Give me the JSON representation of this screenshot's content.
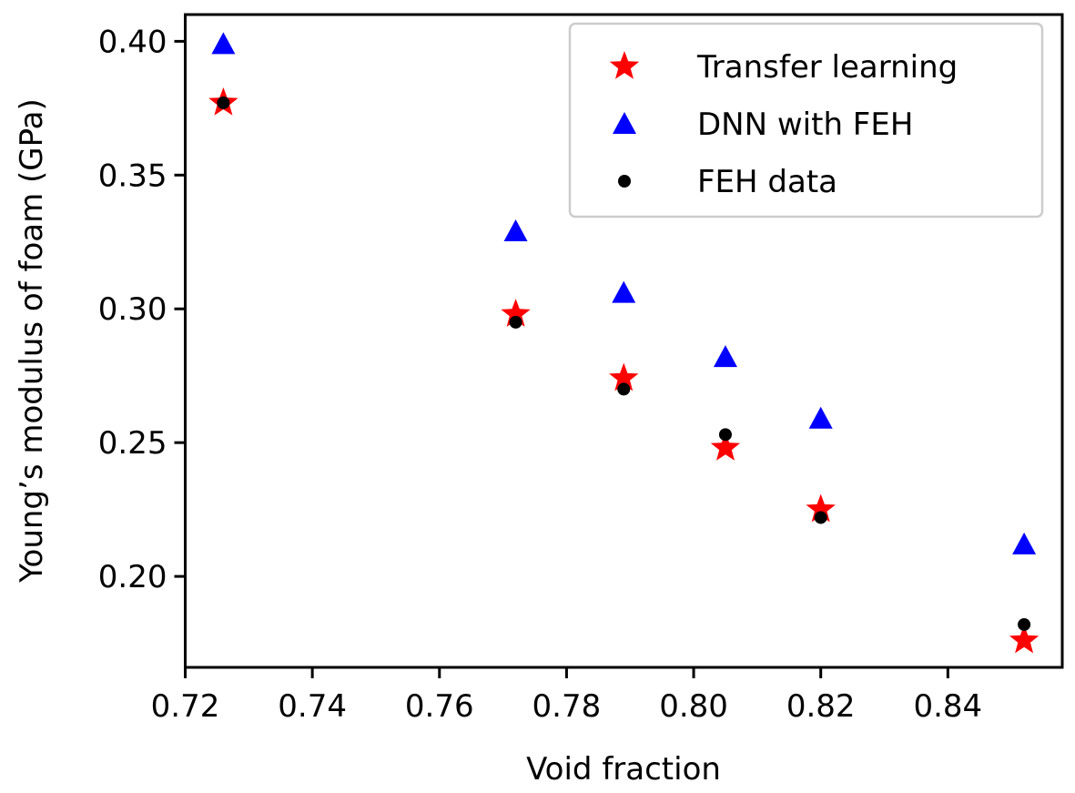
{
  "chart_data": {
    "type": "scatter",
    "title": "",
    "xlabel": "Void fraction",
    "ylabel": "Young’s modulus of foam (GPa)",
    "xlim": [
      0.72,
      0.858
    ],
    "ylim": [
      0.166,
      0.41
    ],
    "xticks": [
      "0.72",
      "0.74",
      "0.76",
      "0.78",
      "0.80",
      "0.82",
      "0.84"
    ],
    "yticks": [
      "0.20",
      "0.25",
      "0.30",
      "0.35",
      "0.40"
    ],
    "grid": false,
    "legend_position": "top-right",
    "x": [
      0.726,
      0.772,
      0.789,
      0.805,
      0.82,
      0.852
    ],
    "series": [
      {
        "name": "Transfer learning",
        "marker": "star",
        "color": "#ff0000",
        "values": [
          0.377,
          0.298,
          0.274,
          0.248,
          0.225,
          0.176
        ]
      },
      {
        "name": "DNN with FEH",
        "marker": "triangle",
        "color": "#0000ff",
        "values": [
          0.399,
          0.329,
          0.306,
          0.282,
          0.259,
          0.212
        ]
      },
      {
        "name": "FEH data",
        "marker": "circle",
        "color": "#000000",
        "values": [
          0.377,
          0.295,
          0.27,
          0.253,
          0.222,
          0.182
        ]
      }
    ]
  }
}
